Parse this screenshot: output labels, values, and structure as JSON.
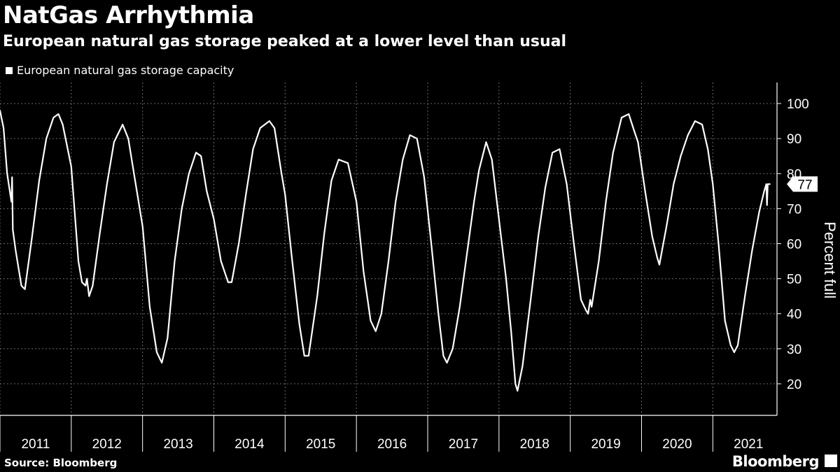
{
  "header": {
    "title": "NatGas Arrhythmia",
    "subtitle": "European natural gas storage peaked at a lower level than usual"
  },
  "legend": {
    "label": "European natural gas storage capacity"
  },
  "footer": {
    "source": "Source: Bloomberg",
    "brand": "Bloomberg"
  },
  "chart_data": {
    "type": "line",
    "title": "NatGas Arrhythmia",
    "subtitle": "European natural gas storage peaked at a lower level than usual",
    "ylabel": "Percent full",
    "xlabel": "",
    "ylim": [
      11,
      106
    ],
    "xlim": [
      2011.0,
      2021.9
    ],
    "yticks": [
      20,
      30,
      40,
      50,
      60,
      70,
      80,
      90,
      100
    ],
    "xticks": [
      "2011",
      "2012",
      "2013",
      "2014",
      "2015",
      "2016",
      "2017",
      "2018",
      "2019",
      "2020",
      "2021"
    ],
    "grid": true,
    "legend_position": "top-left",
    "last_value_label": "77",
    "series": [
      {
        "name": "European natural gas storage capacity",
        "color": "#ffffff",
        "points": [
          [
            2011.0,
            98
          ],
          [
            2011.05,
            93
          ],
          [
            2011.1,
            80
          ],
          [
            2011.16,
            72
          ],
          [
            2011.17,
            79
          ],
          [
            2011.18,
            64
          ],
          [
            2011.22,
            58
          ],
          [
            2011.3,
            48
          ],
          [
            2011.35,
            47
          ],
          [
            2011.45,
            62
          ],
          [
            2011.55,
            78
          ],
          [
            2011.65,
            90
          ],
          [
            2011.75,
            96
          ],
          [
            2011.82,
            97
          ],
          [
            2011.88,
            94
          ],
          [
            2012.0,
            82
          ],
          [
            2012.1,
            55
          ],
          [
            2012.15,
            49
          ],
          [
            2012.2,
            48
          ],
          [
            2012.22,
            50
          ],
          [
            2012.25,
            45
          ],
          [
            2012.3,
            48
          ],
          [
            2012.4,
            63
          ],
          [
            2012.5,
            77
          ],
          [
            2012.6,
            89
          ],
          [
            2012.72,
            94
          ],
          [
            2012.8,
            90
          ],
          [
            2012.88,
            80
          ],
          [
            2013.0,
            65
          ],
          [
            2013.1,
            42
          ],
          [
            2013.2,
            29
          ],
          [
            2013.27,
            26
          ],
          [
            2013.35,
            33
          ],
          [
            2013.45,
            55
          ],
          [
            2013.55,
            70
          ],
          [
            2013.65,
            80
          ],
          [
            2013.75,
            86
          ],
          [
            2013.82,
            85
          ],
          [
            2013.9,
            75
          ],
          [
            2014.0,
            67
          ],
          [
            2014.1,
            55
          ],
          [
            2014.2,
            49
          ],
          [
            2014.25,
            49
          ],
          [
            2014.35,
            60
          ],
          [
            2014.45,
            74
          ],
          [
            2014.55,
            87
          ],
          [
            2014.65,
            93
          ],
          [
            2014.78,
            95
          ],
          [
            2014.85,
            93
          ],
          [
            2014.95,
            80
          ],
          [
            2015.0,
            74
          ],
          [
            2015.1,
            55
          ],
          [
            2015.2,
            37
          ],
          [
            2015.27,
            28
          ],
          [
            2015.33,
            28
          ],
          [
            2015.45,
            45
          ],
          [
            2015.55,
            63
          ],
          [
            2015.65,
            78
          ],
          [
            2015.75,
            84
          ],
          [
            2015.88,
            83
          ],
          [
            2016.0,
            72
          ],
          [
            2016.1,
            52
          ],
          [
            2016.2,
            38
          ],
          [
            2016.27,
            35
          ],
          [
            2016.35,
            40
          ],
          [
            2016.45,
            55
          ],
          [
            2016.55,
            72
          ],
          [
            2016.65,
            84
          ],
          [
            2016.75,
            91
          ],
          [
            2016.85,
            90
          ],
          [
            2016.95,
            79
          ],
          [
            2017.05,
            60
          ],
          [
            2017.15,
            40
          ],
          [
            2017.22,
            28
          ],
          [
            2017.27,
            26
          ],
          [
            2017.35,
            30
          ],
          [
            2017.45,
            42
          ],
          [
            2017.55,
            57
          ],
          [
            2017.65,
            72
          ],
          [
            2017.72,
            81
          ],
          [
            2017.82,
            89
          ],
          [
            2017.9,
            84
          ],
          [
            2018.0,
            67
          ],
          [
            2018.1,
            50
          ],
          [
            2018.17,
            35
          ],
          [
            2018.23,
            20
          ],
          [
            2018.26,
            18
          ],
          [
            2018.33,
            25
          ],
          [
            2018.45,
            45
          ],
          [
            2018.55,
            62
          ],
          [
            2018.65,
            76
          ],
          [
            2018.75,
            86
          ],
          [
            2018.85,
            87
          ],
          [
            2018.95,
            77
          ],
          [
            2019.05,
            60
          ],
          [
            2019.15,
            44
          ],
          [
            2019.22,
            41
          ],
          [
            2019.25,
            40
          ],
          [
            2019.28,
            44
          ],
          [
            2019.3,
            42
          ],
          [
            2019.4,
            55
          ],
          [
            2019.5,
            72
          ],
          [
            2019.6,
            86
          ],
          [
            2019.72,
            96
          ],
          [
            2019.82,
            97
          ],
          [
            2019.9,
            92
          ],
          [
            2019.95,
            89
          ],
          [
            2020.05,
            75
          ],
          [
            2020.15,
            62
          ],
          [
            2020.22,
            56
          ],
          [
            2020.25,
            54
          ],
          [
            2020.35,
            65
          ],
          [
            2020.45,
            77
          ],
          [
            2020.55,
            85
          ],
          [
            2020.65,
            91
          ],
          [
            2020.75,
            95
          ],
          [
            2020.85,
            94
          ],
          [
            2020.93,
            87
          ],
          [
            2021.0,
            77
          ],
          [
            2021.08,
            60
          ],
          [
            2021.17,
            38
          ],
          [
            2021.25,
            31
          ],
          [
            2021.3,
            29
          ],
          [
            2021.35,
            31
          ],
          [
            2021.45,
            45
          ],
          [
            2021.55,
            58
          ],
          [
            2021.65,
            69
          ],
          [
            2021.72,
            75
          ],
          [
            2021.75,
            77
          ],
          [
            2021.76,
            71
          ],
          [
            2021.77,
            77
          ],
          [
            2021.8,
            77
          ]
        ]
      }
    ]
  }
}
